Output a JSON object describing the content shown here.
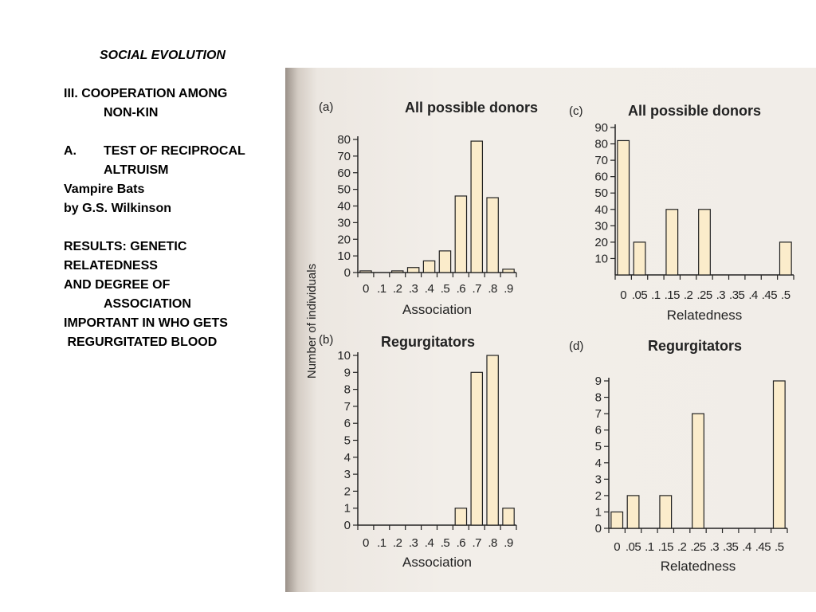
{
  "slide": {
    "title": "SOCIAL EVOLUTION",
    "section_line1": "III. COOPERATION AMONG",
    "section_line2": "NON-KIN",
    "sub_letter": "A.",
    "sub_line1": "TEST OF RECIPROCAL",
    "sub_line2": "ALTRUISM",
    "study_line1": "Vampire Bats",
    "study_line2": "by G.S. Wilkinson",
    "results_lines": [
      "RESULTS: GENETIC",
      "RELATEDNESS",
      "AND DEGREE OF",
      "ASSOCIATION",
      "IMPORTANT IN WHO GETS",
      " REGURGITATED BLOOD"
    ]
  },
  "figure": {
    "shared_ylabel": "Number of individuals",
    "bar_color": "#fbeccb",
    "axis_color": "#222222"
  },
  "chart_data": [
    {
      "panel": "(a)",
      "type": "bar",
      "title": "All possible donors",
      "xlabel": "Association",
      "ylabel": "Number of individuals",
      "categories": [
        "0",
        ".1",
        ".2",
        ".3",
        ".4",
        ".5",
        ".6",
        ".7",
        ".8",
        ".9"
      ],
      "values": [
        1,
        0,
        1,
        3,
        7,
        13,
        46,
        79,
        45,
        2
      ],
      "ylim": [
        0,
        80
      ],
      "yticks": [
        0,
        10,
        20,
        30,
        40,
        50,
        60,
        70,
        80
      ]
    },
    {
      "panel": "(b)",
      "type": "bar",
      "title": "Regurgitators",
      "xlabel": "Association",
      "ylabel": "Number of individuals",
      "categories": [
        "0",
        ".1",
        ".2",
        ".3",
        ".4",
        ".5",
        ".6",
        ".7",
        ".8",
        ".9"
      ],
      "values": [
        0,
        0,
        0,
        0,
        0,
        0,
        1,
        9,
        10,
        1
      ],
      "ylim": [
        0,
        10
      ],
      "yticks": [
        0,
        1,
        2,
        3,
        4,
        5,
        6,
        7,
        8,
        9,
        10
      ]
    },
    {
      "panel": "(c)",
      "type": "bar",
      "title": "All possible donors",
      "xlabel": "Relatedness",
      "categories": [
        "0",
        ".05",
        ".1",
        ".15",
        ".2",
        ".25",
        ".3",
        ".35",
        ".4",
        ".45",
        ".5"
      ],
      "values": [
        82,
        20,
        0,
        40,
        0,
        40,
        0,
        0,
        0,
        0,
        20
      ],
      "ylim": [
        0,
        90
      ],
      "yticks": [
        10,
        20,
        30,
        40,
        50,
        60,
        70,
        80,
        90
      ]
    },
    {
      "panel": "(d)",
      "type": "bar",
      "title": "Regurgitators",
      "xlabel": "Relatedness",
      "categories": [
        "0",
        ".05",
        ".1",
        ".15",
        ".2",
        ".25",
        ".3",
        ".35",
        ".4",
        ".45",
        ".5"
      ],
      "values": [
        1,
        2,
        0,
        2,
        0,
        7,
        0,
        0,
        0,
        0,
        9
      ],
      "ylim": [
        0,
        9
      ],
      "yticks": [
        0,
        1,
        2,
        3,
        4,
        5,
        6,
        7,
        8,
        9
      ]
    }
  ]
}
